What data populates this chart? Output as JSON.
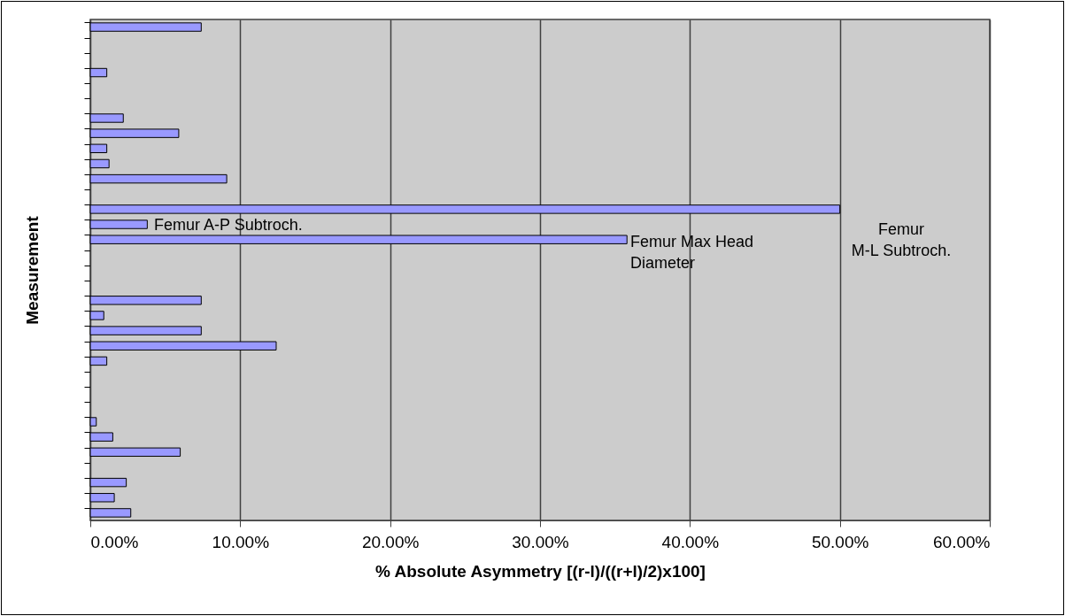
{
  "chart_data": {
    "type": "bar",
    "orientation": "horizontal",
    "xlabel": "% Absolute Asymmetry [(r-l)/((r+l)/2)x100]",
    "ylabel": "Measurement",
    "categories": [
      null,
      null,
      null,
      null,
      null,
      null,
      null,
      null,
      null,
      null,
      null,
      null,
      null,
      null,
      null,
      null,
      null,
      null,
      null,
      null,
      null,
      null,
      null,
      null,
      null,
      null,
      null,
      null,
      null,
      null,
      null,
      null,
      null
    ],
    "values": [
      7.4,
      null,
      null,
      1.1,
      null,
      null,
      2.2,
      5.9,
      1.1,
      1.25,
      9.1,
      null,
      50,
      3.8,
      35.8,
      null,
      null,
      null,
      7.4,
      0.9,
      7.4,
      12.4,
      1.1,
      null,
      null,
      null,
      0.4,
      1.5,
      6.0,
      null,
      2.4,
      1.6,
      2.7
    ],
    "color": "#9999ff",
    "xlim": [
      0,
      60
    ],
    "xticks": [
      {
        "value": 0,
        "label": "0.00%"
      },
      {
        "value": 10,
        "label": "10.00%"
      },
      {
        "value": 20,
        "label": "20.00%"
      },
      {
        "value": 30,
        "label": "30.00%"
      },
      {
        "value": 40,
        "label": "40.00%"
      },
      {
        "value": 50,
        "label": "50.00%"
      },
      {
        "value": 60,
        "label": "60.00%"
      }
    ],
    "grid": "x",
    "tick_labels": "x",
    "annotations": [
      "Femur A-P Subtroch.",
      "Femur Max Head\nDiameter",
      "Femur\nM-L Subtroch."
    ]
  }
}
